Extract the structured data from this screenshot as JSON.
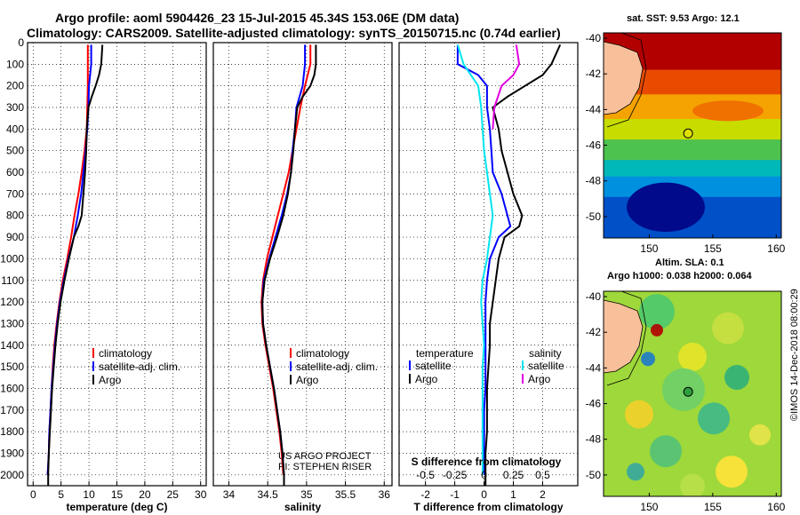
{
  "header": {
    "line1": "Argo profile: aoml 5904426_23 15-Jul-2015 45.34S 153.06E (DM data)",
    "line2": "Climatology: CARS2009. Satellite-adjusted climatology: synTS_20150715.nc (0.74d earlier)"
  },
  "colors": {
    "climatology": "#ff0000",
    "satellite": "#0000ff",
    "argo": "#000000",
    "satellite_salinity": "#00e5ee",
    "argo_salinity": "#e000e0"
  },
  "chart_data": [
    {
      "type": "line",
      "id": "temperature",
      "xlabel": "temperature (deg C)",
      "xlim": [
        -1,
        31
      ],
      "xticks": [
        "0",
        "5",
        "10",
        "15",
        "20",
        "25",
        "30"
      ],
      "ylim": [
        0,
        2050
      ],
      "yticks": [
        "0",
        "100",
        "200",
        "300",
        "400",
        "500",
        "600",
        "700",
        "800",
        "900",
        "1000",
        "1100",
        "1200",
        "1300",
        "1400",
        "1500",
        "1600",
        "1700",
        "1800",
        "1900",
        "2000"
      ],
      "grid": true,
      "legend": [
        "climatology",
        "satellite-adj. clim.",
        "Argo"
      ],
      "series": [
        {
          "name": "climatology",
          "color": "climatology",
          "points": [
            [
              9.8,
              10
            ],
            [
              9.8,
              100
            ],
            [
              9.8,
              200
            ],
            [
              9.7,
              300
            ],
            [
              9.6,
              400
            ],
            [
              9.2,
              500
            ],
            [
              8.7,
              600
            ],
            [
              8.1,
              700
            ],
            [
              7.4,
              800
            ],
            [
              6.8,
              900
            ],
            [
              6.1,
              1000
            ],
            [
              5.3,
              1100
            ],
            [
              4.7,
              1200
            ],
            [
              4.2,
              1300
            ],
            [
              3.8,
              1400
            ],
            [
              3.5,
              1500
            ],
            [
              3.3,
              1600
            ],
            [
              3.1,
              1700
            ],
            [
              2.9,
              1800
            ],
            [
              2.8,
              1900
            ],
            [
              2.6,
              2000
            ]
          ]
        },
        {
          "name": "satellite-adj. clim.",
          "color": "satellite",
          "points": [
            [
              10.4,
              10
            ],
            [
              10.4,
              100
            ],
            [
              10.0,
              200
            ],
            [
              9.9,
              300
            ],
            [
              9.7,
              400
            ],
            [
              9.4,
              500
            ],
            [
              9.0,
              600
            ],
            [
              8.6,
              700
            ],
            [
              8.0,
              800
            ],
            [
              7.3,
              900
            ],
            [
              6.3,
              1000
            ],
            [
              5.5,
              1100
            ],
            [
              4.8,
              1200
            ],
            [
              4.3,
              1300
            ],
            [
              3.9,
              1400
            ],
            [
              3.6,
              1500
            ],
            [
              3.3,
              1600
            ],
            [
              3.1,
              1700
            ],
            [
              2.9,
              1800
            ],
            [
              2.8,
              1900
            ],
            [
              2.6,
              2000
            ]
          ]
        },
        {
          "name": "Argo",
          "color": "argo",
          "points": [
            [
              12.4,
              10
            ],
            [
              12.2,
              100
            ],
            [
              11.8,
              150
            ],
            [
              11.2,
              200
            ],
            [
              10.5,
              250
            ],
            [
              9.9,
              300
            ],
            [
              9.6,
              400
            ],
            [
              9.5,
              500
            ],
            [
              9.3,
              600
            ],
            [
              9.0,
              700
            ],
            [
              8.7,
              800
            ],
            [
              8.1,
              850
            ],
            [
              7.3,
              900
            ],
            [
              6.4,
              1000
            ],
            [
              5.6,
              1100
            ],
            [
              4.9,
              1200
            ],
            [
              4.4,
              1300
            ],
            [
              4.0,
              1400
            ],
            [
              3.7,
              1500
            ],
            [
              3.4,
              1600
            ],
            [
              3.2,
              1700
            ],
            [
              3.0,
              1800
            ],
            [
              2.8,
              1900
            ],
            [
              2.7,
              2000
            ],
            [
              2.7,
              2050
            ]
          ]
        }
      ]
    },
    {
      "type": "line",
      "id": "salinity",
      "xlabel": "salinity",
      "xlim": [
        33.8,
        36.1
      ],
      "xticks": [
        "34",
        "34.5",
        "35",
        "35.5",
        "36"
      ],
      "ylim": [
        0,
        2050
      ],
      "grid": true,
      "legend": [
        "climatology",
        "satellite-adj. clim.",
        "Argo"
      ],
      "series": [
        {
          "name": "climatology",
          "color": "climatology",
          "points": [
            [
              35.05,
              10
            ],
            [
              35.05,
              100
            ],
            [
              34.98,
              200
            ],
            [
              34.92,
              300
            ],
            [
              34.87,
              400
            ],
            [
              34.82,
              500
            ],
            [
              34.77,
              600
            ],
            [
              34.7,
              700
            ],
            [
              34.63,
              800
            ],
            [
              34.56,
              900
            ],
            [
              34.49,
              1000
            ],
            [
              34.44,
              1100
            ],
            [
              34.42,
              1200
            ],
            [
              34.43,
              1300
            ],
            [
              34.47,
              1400
            ],
            [
              34.52,
              1500
            ],
            [
              34.57,
              1600
            ],
            [
              34.61,
              1700
            ],
            [
              34.65,
              1800
            ],
            [
              34.68,
              1900
            ],
            [
              34.7,
              2000
            ]
          ]
        },
        {
          "name": "satellite-adj. clim.",
          "color": "satellite",
          "points": [
            [
              34.98,
              10
            ],
            [
              34.98,
              100
            ],
            [
              34.95,
              200
            ],
            [
              34.87,
              300
            ],
            [
              34.85,
              400
            ],
            [
              34.82,
              500
            ],
            [
              34.8,
              600
            ],
            [
              34.75,
              700
            ],
            [
              34.68,
              800
            ],
            [
              34.6,
              900
            ],
            [
              34.52,
              1000
            ],
            [
              34.45,
              1100
            ],
            [
              34.43,
              1200
            ],
            [
              34.44,
              1300
            ],
            [
              34.48,
              1400
            ],
            [
              34.53,
              1500
            ],
            [
              34.58,
              1600
            ],
            [
              34.62,
              1700
            ],
            [
              34.66,
              1800
            ],
            [
              34.69,
              1900
            ],
            [
              34.71,
              2000
            ]
          ]
        },
        {
          "name": "Argo",
          "color": "argo",
          "points": [
            [
              35.12,
              10
            ],
            [
              35.12,
              100
            ],
            [
              35.1,
              150
            ],
            [
              35.05,
              200
            ],
            [
              34.95,
              250
            ],
            [
              34.88,
              300
            ],
            [
              34.85,
              400
            ],
            [
              34.83,
              500
            ],
            [
              34.8,
              600
            ],
            [
              34.76,
              700
            ],
            [
              34.7,
              800
            ],
            [
              34.62,
              900
            ],
            [
              34.53,
              1000
            ],
            [
              34.46,
              1100
            ],
            [
              34.43,
              1200
            ],
            [
              34.44,
              1300
            ],
            [
              34.48,
              1400
            ],
            [
              34.53,
              1500
            ],
            [
              34.58,
              1600
            ],
            [
              34.62,
              1700
            ],
            [
              34.66,
              1800
            ],
            [
              34.69,
              1900
            ],
            [
              34.71,
              2000
            ],
            [
              34.71,
              2050
            ]
          ]
        }
      ],
      "credit": [
        "US ARGO PROJECT",
        "PI: STEPHEN RISER"
      ]
    },
    {
      "type": "line",
      "id": "difference",
      "xlabel": "T difference from climatology",
      "xlim": [
        -2.9,
        3.2
      ],
      "xticks": [
        "-2",
        "-1",
        "0",
        "1",
        "2"
      ],
      "top_xlabel": "S difference from climatology",
      "top_xticks": [
        "-0.5",
        "-0.25",
        "0",
        "0.25",
        "0.5"
      ],
      "ylim": [
        0,
        2050
      ],
      "grid": true,
      "legend_left": {
        "title": "temperature",
        "items": [
          "satellite",
          "Argo"
        ]
      },
      "legend_right": {
        "title": "salinity",
        "items": [
          "satellite",
          "Argo"
        ]
      },
      "series": [
        {
          "name": "temperature satellite",
          "color": "satellite",
          "points": [
            [
              -0.9,
              10
            ],
            [
              -0.9,
              100
            ],
            [
              -0.2,
              150
            ],
            [
              0.1,
              200
            ],
            [
              0.1,
              300
            ],
            [
              0.2,
              400
            ],
            [
              0.25,
              500
            ],
            [
              0.3,
              600
            ],
            [
              0.6,
              700
            ],
            [
              0.8,
              800
            ],
            [
              0.9,
              850
            ],
            [
              0.5,
              900
            ],
            [
              0.2,
              1000
            ],
            [
              0.1,
              1100
            ],
            [
              0.05,
              1200
            ],
            [
              0.05,
              1300
            ],
            [
              0.05,
              1400
            ],
            [
              0.05,
              1500
            ],
            [
              0.05,
              1600
            ],
            [
              0.0,
              1700
            ],
            [
              0.0,
              1800
            ],
            [
              0.0,
              1900
            ],
            [
              0.0,
              2000
            ]
          ]
        },
        {
          "name": "temperature Argo",
          "color": "argo",
          "points": [
            [
              2.6,
              10
            ],
            [
              2.3,
              100
            ],
            [
              2.0,
              150
            ],
            [
              1.4,
              200
            ],
            [
              0.8,
              250
            ],
            [
              0.3,
              300
            ],
            [
              0.5,
              400
            ],
            [
              0.6,
              500
            ],
            [
              0.8,
              600
            ],
            [
              1.0,
              700
            ],
            [
              1.3,
              800
            ],
            [
              1.2,
              850
            ],
            [
              0.7,
              900
            ],
            [
              0.5,
              1000
            ],
            [
              0.4,
              1100
            ],
            [
              0.3,
              1200
            ],
            [
              0.2,
              1300
            ],
            [
              0.2,
              1400
            ],
            [
              0.15,
              1500
            ],
            [
              0.1,
              1600
            ],
            [
              0.1,
              1700
            ],
            [
              0.1,
              1800
            ],
            [
              0.05,
              1900
            ],
            [
              0.05,
              2000
            ],
            [
              0.05,
              2050
            ]
          ]
        },
        {
          "name": "salinity satellite",
          "color": "satellite_salinity",
          "points": [
            [
              -0.9,
              10
            ],
            [
              -0.7,
              100
            ],
            [
              -0.2,
              200
            ],
            [
              -0.1,
              300
            ],
            [
              -0.05,
              400
            ],
            [
              0.0,
              500
            ],
            [
              0.1,
              600
            ],
            [
              0.2,
              700
            ],
            [
              0.3,
              800
            ],
            [
              0.2,
              900
            ],
            [
              0.1,
              1000
            ],
            [
              -0.05,
              1100
            ],
            [
              -0.1,
              1200
            ],
            [
              -0.05,
              1300
            ],
            [
              0.0,
              1400
            ],
            [
              -0.05,
              1500
            ],
            [
              -0.05,
              1600
            ],
            [
              -0.05,
              1700
            ],
            [
              -0.05,
              1800
            ],
            [
              -0.05,
              1900
            ],
            [
              -0.05,
              2000
            ]
          ]
        },
        {
          "name": "salinity Argo",
          "color": "argo_salinity",
          "points": [
            [
              1.1,
              10
            ],
            [
              1.2,
              100
            ],
            [
              1.0,
              150
            ],
            [
              0.6,
              200
            ],
            [
              0.35,
              300
            ],
            [
              0.3,
              400
            ]
          ]
        }
      ]
    }
  ],
  "maps": {
    "sst": {
      "title": "sat. SST: 9.53 Argo: 12.1",
      "yticks": [
        "-40",
        "-42",
        "-44",
        "-46",
        "-48",
        "-50"
      ],
      "xticks": [
        "150",
        "155",
        "160"
      ],
      "xlim": [
        146.4,
        160.4
      ],
      "ylim": [
        -51.2,
        -39.7
      ],
      "argo_position": {
        "lon": 153.06,
        "lat": -45.34
      }
    },
    "sla": {
      "title_line1": "Altim. SLA: 0.1",
      "title_line2": "Argo h1000: 0.038 h2000: 0.064",
      "yticks": [
        "-40",
        "-42",
        "-44",
        "-46",
        "-48",
        "-50"
      ],
      "xticks": [
        "150",
        "155",
        "160"
      ],
      "xlim": [
        146.4,
        160.4
      ],
      "ylim": [
        -51.2,
        -39.7
      ],
      "argo_position": {
        "lon": 153.06,
        "lat": -45.34
      },
      "credit": "©IMOS 14-Dec-2018 08:00:29"
    }
  }
}
